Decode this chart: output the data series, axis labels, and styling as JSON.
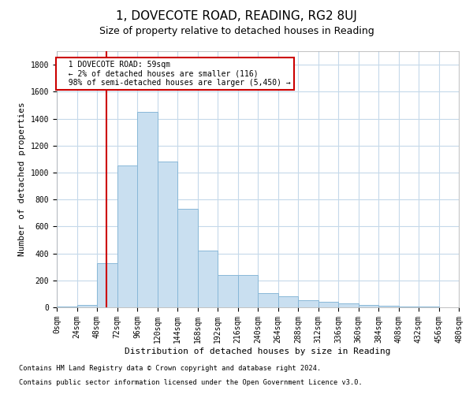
{
  "title": "1, DOVECOTE ROAD, READING, RG2 8UJ",
  "subtitle": "Size of property relative to detached houses in Reading",
  "xlabel": "Distribution of detached houses by size in Reading",
  "ylabel": "Number of detached properties",
  "footnote1": "Contains HM Land Registry data © Crown copyright and database right 2024.",
  "footnote2": "Contains public sector information licensed under the Open Government Licence v3.0.",
  "annotation_line1": "  1 DOVECOTE ROAD: 59sqm",
  "annotation_line2": "  ← 2% of detached houses are smaller (116)",
  "annotation_line3": "  98% of semi-detached houses are larger (5,450) →",
  "bar_values": [
    5,
    20,
    330,
    1050,
    1450,
    1080,
    730,
    420,
    240,
    240,
    105,
    80,
    50,
    40,
    30,
    20,
    10,
    5,
    5,
    2
  ],
  "bin_edges": [
    0,
    24,
    48,
    72,
    96,
    120,
    144,
    168,
    192,
    216,
    240,
    264,
    288,
    312,
    336,
    360,
    384,
    408,
    432,
    456,
    480
  ],
  "ylim": [
    0,
    1900
  ],
  "property_size": 59,
  "bar_color": "#c9dff0",
  "bar_edge_color": "#89b8d8",
  "vline_color": "#cc0000",
  "annotation_box_color": "#cc0000",
  "background_color": "#ffffff",
  "grid_color": "#c5d9ea",
  "title_fontsize": 11,
  "subtitle_fontsize": 9,
  "tick_fontsize": 7,
  "ylabel_fontsize": 8,
  "xlabel_fontsize": 8
}
